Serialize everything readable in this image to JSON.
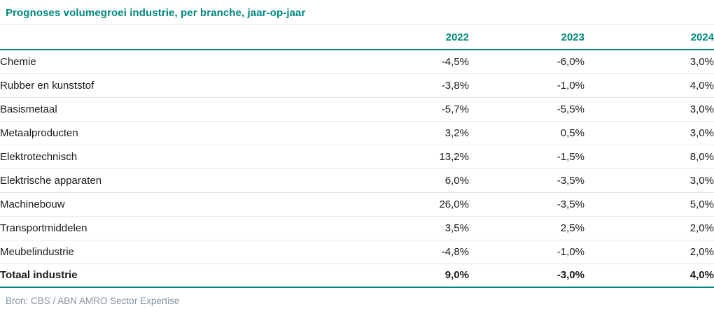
{
  "title": "Prognoses volumegroei industrie, per branche, jaar-op-jaar",
  "source": "Bron: CBS / ABN AMRO Sector Expertise",
  "colors": {
    "accent_teal": "#00867D",
    "text": "#1a1a1a",
    "separator": "#e7e7e7",
    "source_text": "#8294a3"
  },
  "chart_data": {
    "type": "table",
    "title": "Prognoses volumegroei industrie, per branche, jaar-op-jaar",
    "columns": [
      "2022",
      "2023",
      "2024"
    ],
    "rows": [
      {
        "label": "Chemie",
        "values": [
          "-4,5%",
          "-6,0%",
          "3,0%"
        ],
        "values_numeric": [
          -4.5,
          -6.0,
          3.0
        ],
        "bold": false
      },
      {
        "label": "Rubber en kunststof",
        "values": [
          "-3,8%",
          "-1,0%",
          "4,0%"
        ],
        "values_numeric": [
          -3.8,
          -1.0,
          4.0
        ],
        "bold": false
      },
      {
        "label": "Basismetaal",
        "values": [
          "-5,7%",
          "-5,5%",
          "3,0%"
        ],
        "values_numeric": [
          -5.7,
          -5.5,
          3.0
        ],
        "bold": false
      },
      {
        "label": "Metaalproducten",
        "values": [
          "3,2%",
          "0,5%",
          "3,0%"
        ],
        "values_numeric": [
          3.2,
          0.5,
          3.0
        ],
        "bold": false
      },
      {
        "label": "Elektrotechnisch",
        "values": [
          "13,2%",
          "-1,5%",
          "8,0%"
        ],
        "values_numeric": [
          13.2,
          -1.5,
          8.0
        ],
        "bold": false
      },
      {
        "label": "Elektrische apparaten",
        "values": [
          "6,0%",
          "-3,5%",
          "3,0%"
        ],
        "values_numeric": [
          6.0,
          -3.5,
          3.0
        ],
        "bold": false
      },
      {
        "label": "Machinebouw",
        "values": [
          "26,0%",
          "-3,5%",
          "5,0%"
        ],
        "values_numeric": [
          26.0,
          -3.5,
          5.0
        ],
        "bold": false
      },
      {
        "label": "Transportmiddelen",
        "values": [
          "3,5%",
          "2,5%",
          "2,0%"
        ],
        "values_numeric": [
          3.5,
          2.5,
          2.0
        ],
        "bold": false
      },
      {
        "label": "Meubelindustrie",
        "values": [
          "-4,8%",
          "-1,0%",
          "2,0%"
        ],
        "values_numeric": [
          -4.8,
          -1.0,
          2.0
        ],
        "bold": false
      },
      {
        "label": "Totaal industrie",
        "values": [
          "9,0%",
          "-3,0%",
          "4,0%"
        ],
        "values_numeric": [
          9.0,
          -3.0,
          4.0
        ],
        "bold": true
      }
    ],
    "source": "Bron: CBS / ABN AMRO Sector Expertise"
  }
}
